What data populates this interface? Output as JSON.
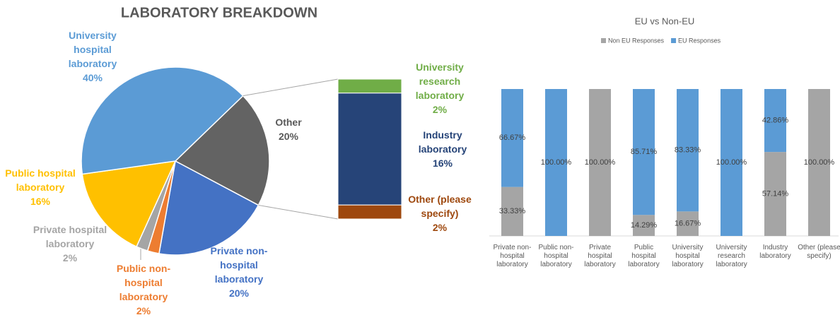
{
  "chart_data": [
    {
      "type": "pie",
      "title": "LABORATORY BREAKDOWN",
      "categories": [
        "Other",
        "Private non-hospital laboratory",
        "Public non-hospital laboratory",
        "Private hospital laboratory",
        "Public hospital laboratory",
        "University hospital laboratory"
      ],
      "values": [
        20,
        20,
        2,
        2,
        16,
        40
      ],
      "value_labels": [
        "20%",
        "20%",
        "2%",
        "2%",
        "16%",
        "40%"
      ],
      "colors": [
        "#636363",
        "#4472c4",
        "#ed7d31",
        "#a5a5a5",
        "#ffc000",
        "#5b9bd5"
      ],
      "bar_of_pie": {
        "categories": [
          "University research laboratory",
          "Industry laboratory",
          "Other (please specify)"
        ],
        "values": [
          2,
          16,
          2
        ],
        "value_labels": [
          "2%",
          "16%",
          "2%"
        ],
        "colors": [
          "#70ad47",
          "#264478",
          "#9e480e"
        ]
      }
    },
    {
      "type": "stacked_bar",
      "title": "EU vs Non-EU",
      "categories": [
        "Private non-hospital laboratory",
        "Public non-hospital laboratory",
        "Private hospital laboratory",
        "Public hospital laboratory",
        "University hospital laboratory",
        "University research laboratory",
        "Industry laboratory",
        "Other (please specify)"
      ],
      "series": [
        {
          "name": "Non EU Responses",
          "color": "#a5a5a5",
          "values": [
            33.33,
            0,
            100,
            14.29,
            16.67,
            0,
            57.14,
            100
          ],
          "value_labels": [
            "33.33%",
            null,
            "100.00%",
            "14.29%",
            "16.67%",
            null,
            "57.14%",
            "100.00%"
          ]
        },
        {
          "name": "EU Responses",
          "color": "#5b9bd5",
          "values": [
            66.67,
            100,
            0,
            85.71,
            83.33,
            100,
            42.86,
            0
          ],
          "value_labels": [
            "66.67%",
            "100.00%",
            null,
            "85.71%",
            "83.33%",
            "100.00%",
            "42.86%",
            null
          ]
        }
      ],
      "ylim": [
        0,
        100
      ],
      "legend": "top"
    }
  ]
}
